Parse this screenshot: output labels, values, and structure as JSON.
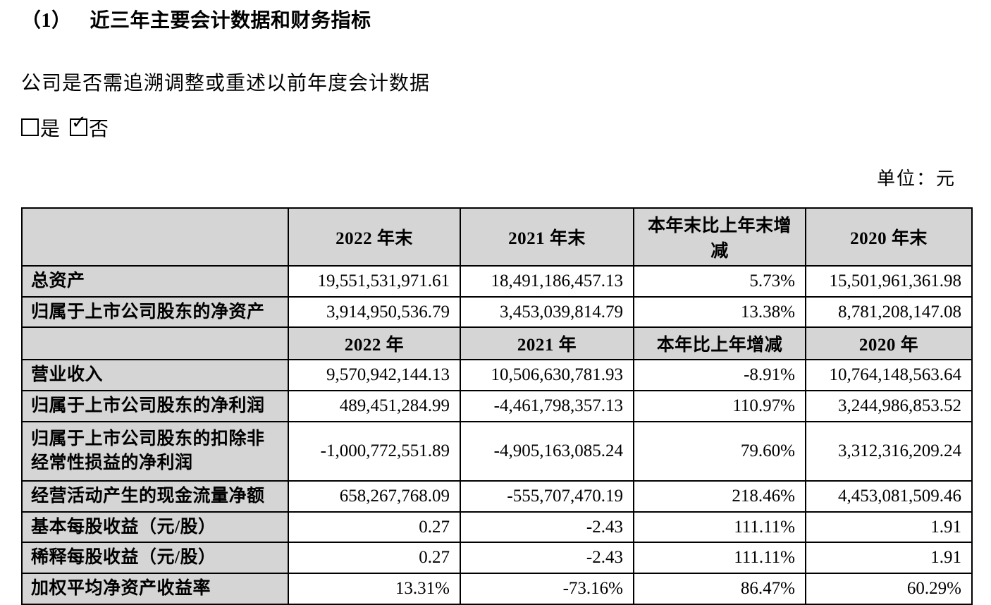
{
  "title": {
    "number": "（1）",
    "text": "近三年主要会计数据和财务指标"
  },
  "question": "公司是否需追溯调整或重述以前年度会计数据",
  "checkboxes": {
    "yes_label": "是",
    "no_label": "否",
    "yes_checked": false,
    "no_checked": true,
    "checkmark_glyph": "✓"
  },
  "unit_note": "单位：元",
  "colors": {
    "header_fill": "#d5d5d5",
    "border": "#000000",
    "text": "#000000"
  },
  "table": {
    "header_end": {
      "cells": [
        "",
        "2022 年末",
        "2021 年末",
        "本年末比上年末增减",
        "2020 年末"
      ]
    },
    "rows_end": [
      {
        "label": "总资产",
        "values": [
          "19,551,531,971.61",
          "18,491,186,457.13",
          "5.73%",
          "15,501,961,361.98"
        ]
      },
      {
        "label": "归属于上市公司股东的净资产",
        "values": [
          "3,914,950,536.79",
          "3,453,039,814.79",
          "13.38%",
          "8,781,208,147.08"
        ]
      }
    ],
    "header_year": {
      "cells": [
        "",
        "2022 年",
        "2021 年",
        "本年比上年增减",
        "2020 年"
      ]
    },
    "rows_year": [
      {
        "label": "营业收入",
        "values": [
          "9,570,942,144.13",
          "10,506,630,781.93",
          "-8.91%",
          "10,764,148,563.64"
        ]
      },
      {
        "label": "归属于上市公司股东的净利润",
        "values": [
          "489,451,284.99",
          "-4,461,798,357.13",
          "110.97%",
          "3,244,986,853.52"
        ]
      },
      {
        "label": "归属于上市公司股东的扣除非经常性损益的净利润",
        "values": [
          "-1,000,772,551.89",
          "-4,905,163,085.24",
          "79.60%",
          "3,312,316,209.24"
        ]
      },
      {
        "label": "经营活动产生的现金流量净额",
        "values": [
          "658,267,768.09",
          "-555,707,470.19",
          "218.46%",
          "4,453,081,509.46"
        ]
      },
      {
        "label": "基本每股收益（元/股）",
        "values": [
          "0.27",
          "-2.43",
          "111.11%",
          "1.91"
        ]
      },
      {
        "label": "稀释每股收益（元/股）",
        "values": [
          "0.27",
          "-2.43",
          "111.11%",
          "1.91"
        ]
      },
      {
        "label": "加权平均净资产收益率",
        "values": [
          "13.31%",
          "-73.16%",
          "86.47%",
          "60.29%"
        ]
      }
    ]
  }
}
